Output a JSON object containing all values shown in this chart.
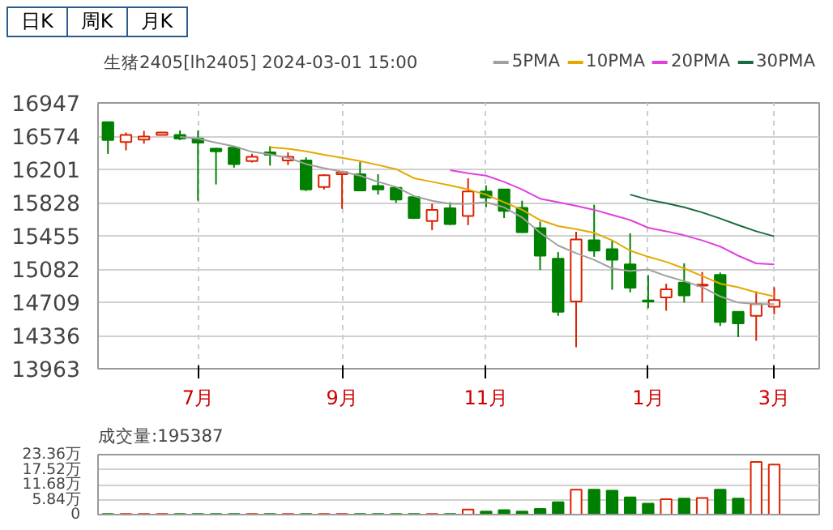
{
  "chart_data": [
    {
      "type": "candlestick",
      "title": "生猪2405[lh2405] 2024-03-01 15:00",
      "annotations": [
        "日K",
        "周K",
        "月K"
      ],
      "categories": [
        null,
        null,
        null,
        null,
        null,
        "7月",
        null,
        null,
        null,
        null,
        null,
        null,
        null,
        "9月",
        null,
        null,
        null,
        null,
        null,
        null,
        null,
        "11月",
        null,
        null,
        null,
        null,
        null,
        null,
        null,
        null,
        "1月",
        null,
        null,
        null,
        null,
        null,
        null,
        "3月"
      ],
      "ohlc": [
        [
          16730,
          16730,
          16375,
          16530
        ],
        [
          16507,
          16615,
          16415,
          16587
        ],
        [
          16535,
          16633,
          16490,
          16570
        ],
        [
          16587,
          16621,
          16587,
          16615
        ],
        [
          16587,
          16638,
          16530,
          16547
        ],
        [
          16547,
          16638,
          15849,
          16501
        ],
        [
          16432,
          16444,
          16032,
          16404
        ],
        [
          16444,
          16450,
          16221,
          16261
        ],
        [
          16295,
          16375,
          16278,
          16341
        ],
        [
          16392,
          16461,
          16244,
          16364
        ],
        [
          16301,
          16392,
          16250,
          16341
        ],
        [
          16301,
          16335,
          15958,
          15975
        ],
        [
          16004,
          16147,
          15975,
          16135
        ],
        [
          16147,
          16170,
          15758,
          16170
        ],
        [
          16147,
          16284,
          15964,
          15964
        ],
        [
          16015,
          16147,
          15918,
          15975
        ],
        [
          15993,
          16004,
          15826,
          15861
        ],
        [
          15889,
          15889,
          15643,
          15655
        ],
        [
          15621,
          15815,
          15518,
          15747
        ],
        [
          15764,
          15832,
          15575,
          15586
        ],
        [
          15678,
          16101,
          15575,
          15952
        ],
        [
          15952,
          16021,
          15775,
          15884
        ],
        [
          15975,
          15975,
          15655,
          15735
        ],
        [
          15770,
          15849,
          15489,
          15495
        ],
        [
          15541,
          15615,
          15072,
          15232
        ],
        [
          15198,
          15272,
          14557,
          14603
        ],
        [
          14717,
          15501,
          14203,
          15415
        ],
        [
          15404,
          15804,
          15220,
          15289
        ],
        [
          15306,
          15404,
          14849,
          15186
        ],
        [
          15135,
          15483,
          14821,
          14872
        ],
        [
          14729,
          15015,
          14643,
          14717
        ],
        [
          14763,
          14917,
          14614,
          14855
        ],
        [
          14929,
          15146,
          14706,
          14786
        ],
        [
          14895,
          15049,
          14706,
          14906
        ],
        [
          15015,
          15043,
          14443,
          14489
        ],
        [
          14603,
          14603,
          14317,
          14472
        ],
        [
          14557,
          14832,
          14277,
          14689
        ],
        [
          14660,
          14878,
          14574,
          14735
        ]
      ],
      "colors": [
        "#008000",
        "#dd2200",
        "#dd2200",
        "#dd2200",
        "#008000",
        "#008000",
        "#008000",
        "#008000",
        "#dd2200",
        "#008000",
        "#dd2200",
        "#008000",
        "#dd2200",
        "#dd2200",
        "#008000",
        "#008000",
        "#008000",
        "#008000",
        "#dd2200",
        "#008000",
        "#dd2200",
        "#008000",
        "#008000",
        "#008000",
        "#008000",
        "#008000",
        "#dd2200",
        "#008000",
        "#008000",
        "#008000",
        "#008000",
        "#dd2200",
        "#008000",
        "#dd2200",
        "#008000",
        "#008000",
        "#dd2200",
        "#dd2200"
      ],
      "series": [
        {
          "type": "line",
          "name": "5PMA",
          "color": "#a0a0a0",
          "values": [
            null,
            null,
            null,
            null,
            16564,
            16547,
            16501,
            16461,
            16398,
            16370,
            16330,
            16261,
            16215,
            16175,
            16130,
            16061,
            16004,
            15901,
            15849,
            15815,
            15815,
            15832,
            15775,
            15661,
            15489,
            15346,
            15260,
            15186,
            15089,
            15060,
            15078,
            15004,
            14947,
            14878,
            14775,
            14706,
            14689,
            14689
          ]
        },
        {
          "type": "line",
          "name": "10PMA",
          "color": "#e6a800",
          "values": [
            null,
            null,
            null,
            null,
            null,
            null,
            null,
            null,
            null,
            16450,
            16432,
            16404,
            16364,
            16330,
            16295,
            16250,
            16204,
            16101,
            16061,
            16021,
            15975,
            15918,
            15832,
            15747,
            15632,
            15564,
            15530,
            15489,
            15404,
            15289,
            15220,
            15163,
            15089,
            15004,
            14918,
            14878,
            14820,
            14775
          ]
        },
        {
          "type": "line",
          "name": "20PMA",
          "color": "#e040e0",
          "values": [
            null,
            null,
            null,
            null,
            null,
            null,
            null,
            null,
            null,
            null,
            null,
            null,
            null,
            null,
            null,
            null,
            null,
            null,
            null,
            16192,
            16158,
            16130,
            16061,
            15975,
            15872,
            15832,
            15792,
            15747,
            15690,
            15632,
            15546,
            15506,
            15461,
            15404,
            15335,
            15232,
            15146,
            15135
          ]
        },
        {
          "type": "line",
          "name": "30PMA",
          "color": "#1a6a40",
          "values": [
            null,
            null,
            null,
            null,
            null,
            null,
            null,
            null,
            null,
            null,
            null,
            null,
            null,
            null,
            null,
            null,
            null,
            null,
            null,
            null,
            null,
            null,
            null,
            null,
            null,
            null,
            null,
            null,
            null,
            15918,
            15861,
            15821,
            15775,
            15718,
            15649,
            15575,
            15506,
            15449
          ]
        }
      ],
      "ylim": [
        13963,
        16947
      ],
      "yticks": [
        13963,
        14336,
        14709,
        15082,
        15455,
        15828,
        16201,
        16574,
        16947
      ],
      "grid": true,
      "legend": "top right"
    },
    {
      "type": "bar",
      "title": "成交量:195387",
      "categories": [
        null,
        null,
        null,
        null,
        null,
        null,
        null,
        null,
        null,
        null,
        null,
        null,
        null,
        null,
        null,
        null,
        null,
        null,
        null,
        null,
        null,
        null,
        null,
        null,
        null,
        null,
        null,
        null,
        null,
        null,
        null,
        null,
        null,
        null,
        null,
        null,
        null,
        null
      ],
      "values": [
        0.2,
        0.2,
        0.2,
        0.2,
        0.2,
        0.2,
        0.2,
        0.2,
        0.2,
        0.2,
        0.2,
        0.2,
        0.2,
        0.2,
        0.2,
        0.2,
        0.2,
        0.2,
        0.2,
        0.2,
        2.0,
        1.2,
        1.7,
        1.2,
        2.2,
        4.8,
        9.7,
        9.7,
        9.3,
        6.7,
        4.3,
        6.0,
        6.2,
        6.5,
        9.7,
        6.2,
        20.5,
        19.5
      ],
      "colors": [
        "#008000",
        "#dd2200",
        "#dd2200",
        "#dd2200",
        "#008000",
        "#008000",
        "#008000",
        "#008000",
        "#dd2200",
        "#008000",
        "#dd2200",
        "#008000",
        "#dd2200",
        "#dd2200",
        "#008000",
        "#008000",
        "#008000",
        "#008000",
        "#dd2200",
        "#008000",
        "#dd2200",
        "#008000",
        "#008000",
        "#008000",
        "#008000",
        "#008000",
        "#dd2200",
        "#008000",
        "#008000",
        "#008000",
        "#008000",
        "#dd2200",
        "#008000",
        "#dd2200",
        "#008000",
        "#008000",
        "#dd2200",
        "#dd2200"
      ],
      "ylim": [
        0,
        23.36
      ],
      "yticks": [
        0,
        {
          "value": 5.84,
          "label": "5.84万"
        },
        {
          "value": 11.68,
          "label": "11.68万"
        },
        {
          "value": 17.52,
          "label": "17.52万"
        },
        {
          "value": 23.36,
          "label": "23.36万"
        }
      ],
      "grid": true,
      "tick_labels": "y"
    }
  ]
}
